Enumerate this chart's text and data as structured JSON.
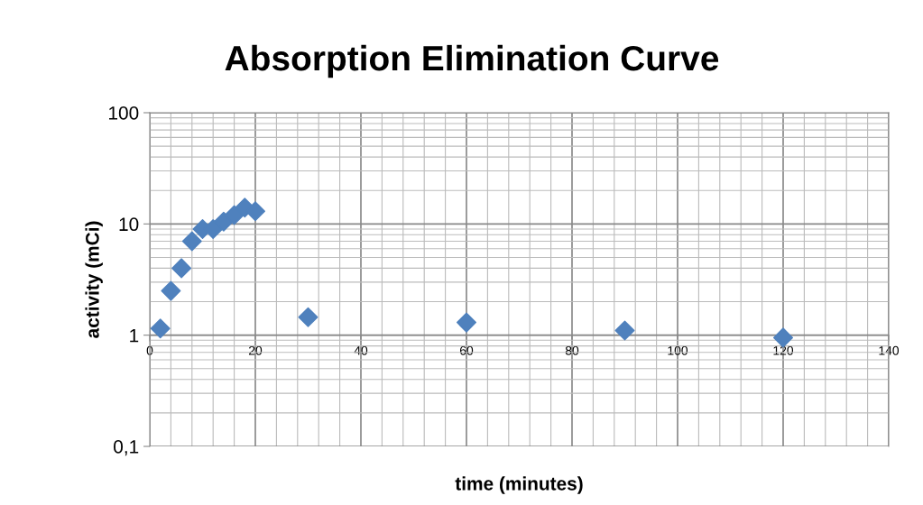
{
  "chart_data": {
    "type": "scatter",
    "title": "Absorption Elimination Curve",
    "xlabel": "time (minutes)",
    "ylabel": "activity (mCi)",
    "x": [
      2,
      4,
      6,
      8,
      10,
      12,
      14,
      16,
      18,
      20,
      30,
      60,
      90,
      120
    ],
    "series": [
      {
        "color": "#4f81bd",
        "values": [
          1.15,
          2.5,
          4,
          7,
          9,
          9,
          10.5,
          12,
          14,
          13,
          1.45,
          1.3,
          1.1,
          0.95
        ]
      }
    ],
    "xlim": [
      0,
      140
    ],
    "xticks": [
      0,
      20,
      40,
      60,
      80,
      100,
      120,
      140
    ],
    "ylim": [
      0.1,
      100
    ],
    "yticks": [
      {
        "value": 0.1,
        "label": "0,1"
      },
      1,
      10,
      100
    ],
    "log": "y",
    "grid": true,
    "marker": "diamond",
    "legend": false
  }
}
